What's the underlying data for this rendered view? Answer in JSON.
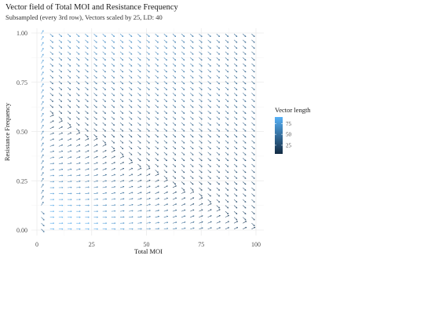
{
  "chart_data": {
    "type": "vector-field",
    "title": "Vector field of Total MOI and Resistance Frequency",
    "subtitle": "Subsampled (every 3rd row), Vectors scaled by 25, LD: 40",
    "xlabel": "Total MOI",
    "ylabel": "Resistance Frequency",
    "xlim": [
      0,
      100
    ],
    "ylim": [
      0,
      1
    ],
    "x_ticks": [
      0,
      25,
      50,
      75,
      100
    ],
    "x_tick_labels": [
      "0",
      "25",
      "50",
      "75",
      "100"
    ],
    "y_ticks": [
      0,
      0.25,
      0.5,
      0.75,
      1.0
    ],
    "y_tick_labels": [
      "0.00",
      "0.25",
      "0.50",
      "0.75",
      "1.00"
    ],
    "grid": true,
    "legend": {
      "title": "Vector length",
      "placement": "right",
      "ticks": [
        25,
        50,
        75
      ],
      "tick_labels": [
        "25",
        "50",
        "75"
      ],
      "range": [
        5,
        90
      ],
      "color_low": "#132b43",
      "color_high": "#56b1f7"
    },
    "field": {
      "x_start": 2,
      "x_end": 98,
      "x_step": 4,
      "y_start": 0.005,
      "y_end": 0.995,
      "y_step": 0.03,
      "separatrix_slope_per_moi": -0.0062,
      "separatrix_at_zero": 0.62
    }
  }
}
